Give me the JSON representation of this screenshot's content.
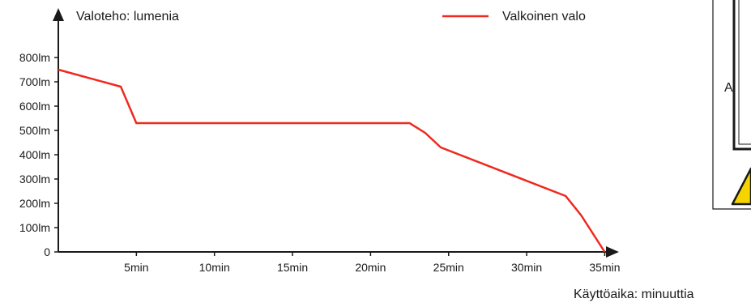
{
  "chart_data": {
    "type": "line",
    "ylabel": "Valoteho: lumenia",
    "xlabel": "Käyttöaika: minuuttia",
    "x_ticks": [
      "5min",
      "10min",
      "15min",
      "20min",
      "25min",
      "30min",
      "35min"
    ],
    "x_tick_values": [
      5,
      10,
      15,
      20,
      25,
      30,
      35
    ],
    "y_ticks": [
      "0",
      "100lm",
      "200lm",
      "300lm",
      "400lm",
      "500lm",
      "600lm",
      "700lm",
      "800lm"
    ],
    "y_tick_values": [
      0,
      100,
      200,
      300,
      400,
      500,
      600,
      700,
      800
    ],
    "xlim": [
      0,
      35.5
    ],
    "ylim": [
      0,
      800
    ],
    "legend_position": "top-right",
    "series": [
      {
        "name": "Valkoinen valo",
        "color": "#f0281e",
        "x": [
          0,
          4,
          5,
          22.5,
          23.5,
          24.5,
          32.5,
          33.5,
          35
        ],
        "y": [
          750,
          680,
          530,
          530,
          490,
          430,
          230,
          150,
          0
        ]
      }
    ]
  },
  "side_panel": {
    "letter": "A"
  },
  "colors": {
    "warning_yellow": "#f5d400",
    "axis": "#1a1a1a"
  }
}
